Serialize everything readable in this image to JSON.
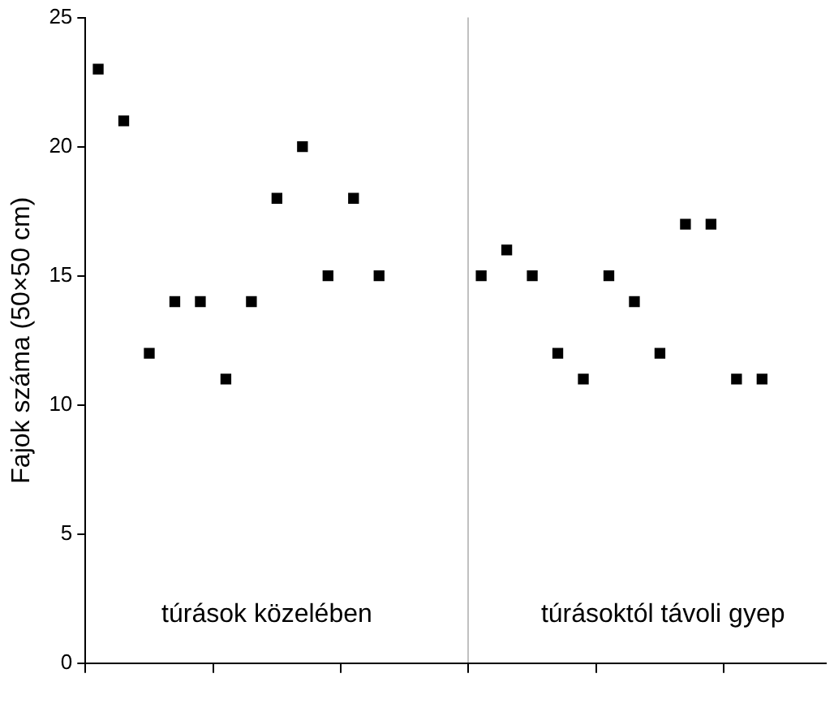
{
  "chart_data": {
    "type": "scatter",
    "ylabel": "Fajok száma (50×50 cm)",
    "categories": [
      null,
      null,
      null,
      null,
      null,
      null,
      null,
      null,
      null,
      null,
      null,
      null,
      null,
      null,
      null,
      null,
      null,
      null,
      null,
      null,
      null,
      null,
      null,
      null,
      null,
      null,
      null,
      null,
      null
    ],
    "series": [
      {
        "color": "#000000",
        "values": [
          23,
          21,
          12,
          14,
          14,
          11,
          14,
          18,
          20,
          15,
          18,
          15,
          null,
          null,
          null,
          15,
          16,
          15,
          12,
          11,
          15,
          14,
          12,
          17,
          17,
          11,
          11,
          null,
          null
        ]
      }
    ],
    "ylim": [
      0,
      25
    ],
    "yticks": [
      0,
      5,
      10,
      15,
      20,
      25
    ],
    "grid": false,
    "legend": false,
    "marker": "square",
    "annotations": [
      "túrások közelében",
      "túrásoktól távoli gyep"
    ]
  }
}
